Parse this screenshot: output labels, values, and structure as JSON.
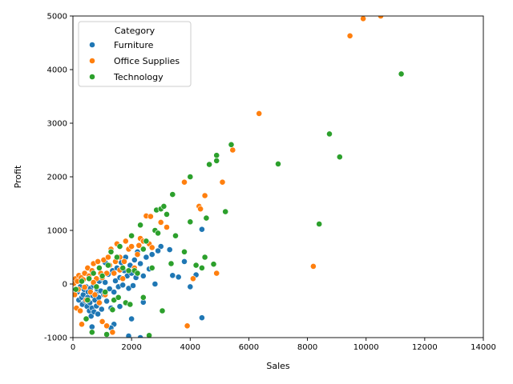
{
  "chart_data": {
    "type": "scatter",
    "xlabel": "Sales",
    "ylabel": "Profit",
    "xlim": [
      0,
      14000
    ],
    "ylim": [
      -1000,
      5000
    ],
    "xticks": [
      0,
      2000,
      4000,
      6000,
      8000,
      10000,
      12000,
      14000
    ],
    "yticks": [
      -1000,
      0,
      1000,
      2000,
      3000,
      4000,
      5000
    ],
    "legend": {
      "title": "Category",
      "placement": "upper-left"
    },
    "grid": false,
    "series": [
      {
        "name": "Furniture",
        "color": "#1f77b4",
        "points": [
          [
            150,
            -150
          ],
          [
            200,
            -300
          ],
          [
            250,
            -50
          ],
          [
            300,
            -250
          ],
          [
            320,
            -380
          ],
          [
            350,
            -200
          ],
          [
            380,
            -100
          ],
          [
            420,
            -320
          ],
          [
            450,
            -50
          ],
          [
            480,
            -420
          ],
          [
            500,
            -250
          ],
          [
            520,
            -150
          ],
          [
            560,
            -500
          ],
          [
            580,
            -350
          ],
          [
            600,
            -80
          ],
          [
            620,
            -600
          ],
          [
            650,
            -450
          ],
          [
            680,
            -220
          ],
          [
            700,
            -30
          ],
          [
            720,
            -520
          ],
          [
            750,
            -300
          ],
          [
            780,
            -180
          ],
          [
            800,
            -410
          ],
          [
            820,
            -90
          ],
          [
            850,
            -560
          ],
          [
            880,
            -250
          ],
          [
            900,
            50
          ],
          [
            920,
            -350
          ],
          [
            950,
            -130
          ],
          [
            980,
            -470
          ],
          [
            1000,
            100
          ],
          [
            1050,
            -200
          ],
          [
            1100,
            30
          ],
          [
            1150,
            -320
          ],
          [
            1200,
            180
          ],
          [
            1250,
            -90
          ],
          [
            1300,
            -450
          ],
          [
            1350,
            250
          ],
          [
            1400,
            -150
          ],
          [
            1450,
            60
          ],
          [
            1500,
            300
          ],
          [
            1550,
            -50
          ],
          [
            1600,
            120
          ],
          [
            1650,
            400
          ],
          [
            1700,
            -20
          ],
          [
            1750,
            250
          ],
          [
            1800,
            500
          ],
          [
            1850,
            150
          ],
          [
            1900,
            -80
          ],
          [
            1950,
            350
          ],
          [
            2000,
            200
          ],
          [
            2050,
            -30
          ],
          [
            2100,
            450
          ],
          [
            2150,
            120
          ],
          [
            2200,
            600
          ],
          [
            2300,
            380
          ],
          [
            2400,
            150
          ],
          [
            2500,
            500
          ],
          [
            2600,
            280
          ],
          [
            2700,
            550
          ],
          [
            2800,
            0
          ],
          [
            3000,
            700
          ],
          [
            3400,
            160
          ],
          [
            3600,
            130
          ],
          [
            3800,
            420
          ],
          [
            4000,
            -50
          ],
          [
            4200,
            170
          ],
          [
            4400,
            1020
          ],
          [
            4400,
            -630
          ],
          [
            1400,
            -750
          ],
          [
            1900,
            -970
          ],
          [
            2300,
            -1000
          ],
          [
            1300,
            -820
          ],
          [
            650,
            -800
          ],
          [
            2400,
            -340
          ],
          [
            2000,
            -650
          ],
          [
            2900,
            620
          ],
          [
            3300,
            640
          ],
          [
            1100,
            400
          ],
          [
            1600,
            -420
          ]
        ]
      },
      {
        "name": "Office Supplies",
        "color": "#ff7f0e",
        "points": [
          [
            30,
            10
          ],
          [
            60,
            -200
          ],
          [
            90,
            100
          ],
          [
            120,
            -450
          ],
          [
            150,
            50
          ],
          [
            180,
            -100
          ],
          [
            200,
            160
          ],
          [
            250,
            -500
          ],
          [
            280,
            120
          ],
          [
            300,
            -750
          ],
          [
            350,
            80
          ],
          [
            400,
            200
          ],
          [
            450,
            -300
          ],
          [
            500,
            300
          ],
          [
            550,
            150
          ],
          [
            600,
            -150
          ],
          [
            650,
            250
          ],
          [
            700,
            380
          ],
          [
            750,
            -200
          ],
          [
            800,
            100
          ],
          [
            850,
            420
          ],
          [
            900,
            -350
          ],
          [
            950,
            200
          ],
          [
            1000,
            -700
          ],
          [
            1050,
            450
          ],
          [
            1100,
            -200
          ],
          [
            1150,
            -780
          ],
          [
            1200,
            500
          ],
          [
            1250,
            350
          ],
          [
            1300,
            650
          ],
          [
            1350,
            -900
          ],
          [
            1400,
            200
          ],
          [
            1450,
            420
          ],
          [
            1500,
            750
          ],
          [
            1600,
            500
          ],
          [
            1700,
            100
          ],
          [
            1800,
            800
          ],
          [
            1900,
            650
          ],
          [
            2000,
            700
          ],
          [
            2100,
            300
          ],
          [
            2200,
            550
          ],
          [
            2300,
            850
          ],
          [
            2400,
            800
          ],
          [
            2500,
            1270
          ],
          [
            2600,
            750
          ],
          [
            2650,
            1260
          ],
          [
            3000,
            1150
          ],
          [
            3200,
            1060
          ],
          [
            3800,
            1900
          ],
          [
            3900,
            -780
          ],
          [
            4100,
            100
          ],
          [
            4300,
            1450
          ],
          [
            4350,
            1400
          ],
          [
            4500,
            1650
          ],
          [
            4900,
            200
          ],
          [
            5100,
            1900
          ],
          [
            5450,
            2500
          ],
          [
            6350,
            3180
          ],
          [
            8200,
            330
          ],
          [
            9450,
            4630
          ],
          [
            9900,
            4950
          ],
          [
            10500,
            5000
          ],
          [
            2700,
            680
          ],
          [
            2250,
            720
          ],
          [
            1750,
            420
          ],
          [
            1150,
            200
          ],
          [
            700,
            30
          ],
          [
            400,
            -60
          ],
          [
            1000,
            120
          ],
          [
            1600,
            260
          ]
        ]
      },
      {
        "name": "Technology",
        "color": "#2ca02c",
        "points": [
          [
            100,
            -100
          ],
          [
            300,
            50
          ],
          [
            450,
            -650
          ],
          [
            500,
            -300
          ],
          [
            550,
            100
          ],
          [
            650,
            -900
          ],
          [
            700,
            200
          ],
          [
            800,
            -50
          ],
          [
            900,
            300
          ],
          [
            1000,
            150
          ],
          [
            1100,
            -150
          ],
          [
            1200,
            350
          ],
          [
            1300,
            600
          ],
          [
            1400,
            -300
          ],
          [
            1500,
            500
          ],
          [
            1600,
            700
          ],
          [
            1700,
            300
          ],
          [
            1800,
            -350
          ],
          [
            1900,
            250
          ],
          [
            2000,
            900
          ],
          [
            2100,
            250
          ],
          [
            2200,
            200
          ],
          [
            2300,
            1100
          ],
          [
            2400,
            -250
          ],
          [
            2500,
            800
          ],
          [
            2600,
            -960
          ],
          [
            2700,
            300
          ],
          [
            2800,
            1000
          ],
          [
            2850,
            1380
          ],
          [
            2900,
            950
          ],
          [
            3000,
            1400
          ],
          [
            3050,
            -500
          ],
          [
            3100,
            1450
          ],
          [
            3200,
            1300
          ],
          [
            3400,
            1670
          ],
          [
            3500,
            900
          ],
          [
            3800,
            600
          ],
          [
            4000,
            1160
          ],
          [
            4000,
            2000
          ],
          [
            4200,
            350
          ],
          [
            4400,
            300
          ],
          [
            4500,
            500
          ],
          [
            4550,
            1230
          ],
          [
            4650,
            2230
          ],
          [
            4800,
            370
          ],
          [
            4900,
            2300
          ],
          [
            4900,
            2400
          ],
          [
            5200,
            1350
          ],
          [
            5400,
            2600
          ],
          [
            7000,
            2240
          ],
          [
            8400,
            1120
          ],
          [
            8750,
            2800
          ],
          [
            9100,
            2370
          ],
          [
            11200,
            3920
          ],
          [
            1350,
            -480
          ],
          [
            1550,
            -250
          ],
          [
            1950,
            -380
          ],
          [
            2400,
            650
          ],
          [
            3350,
            380
          ],
          [
            1150,
            -940
          ]
        ]
      }
    ]
  }
}
